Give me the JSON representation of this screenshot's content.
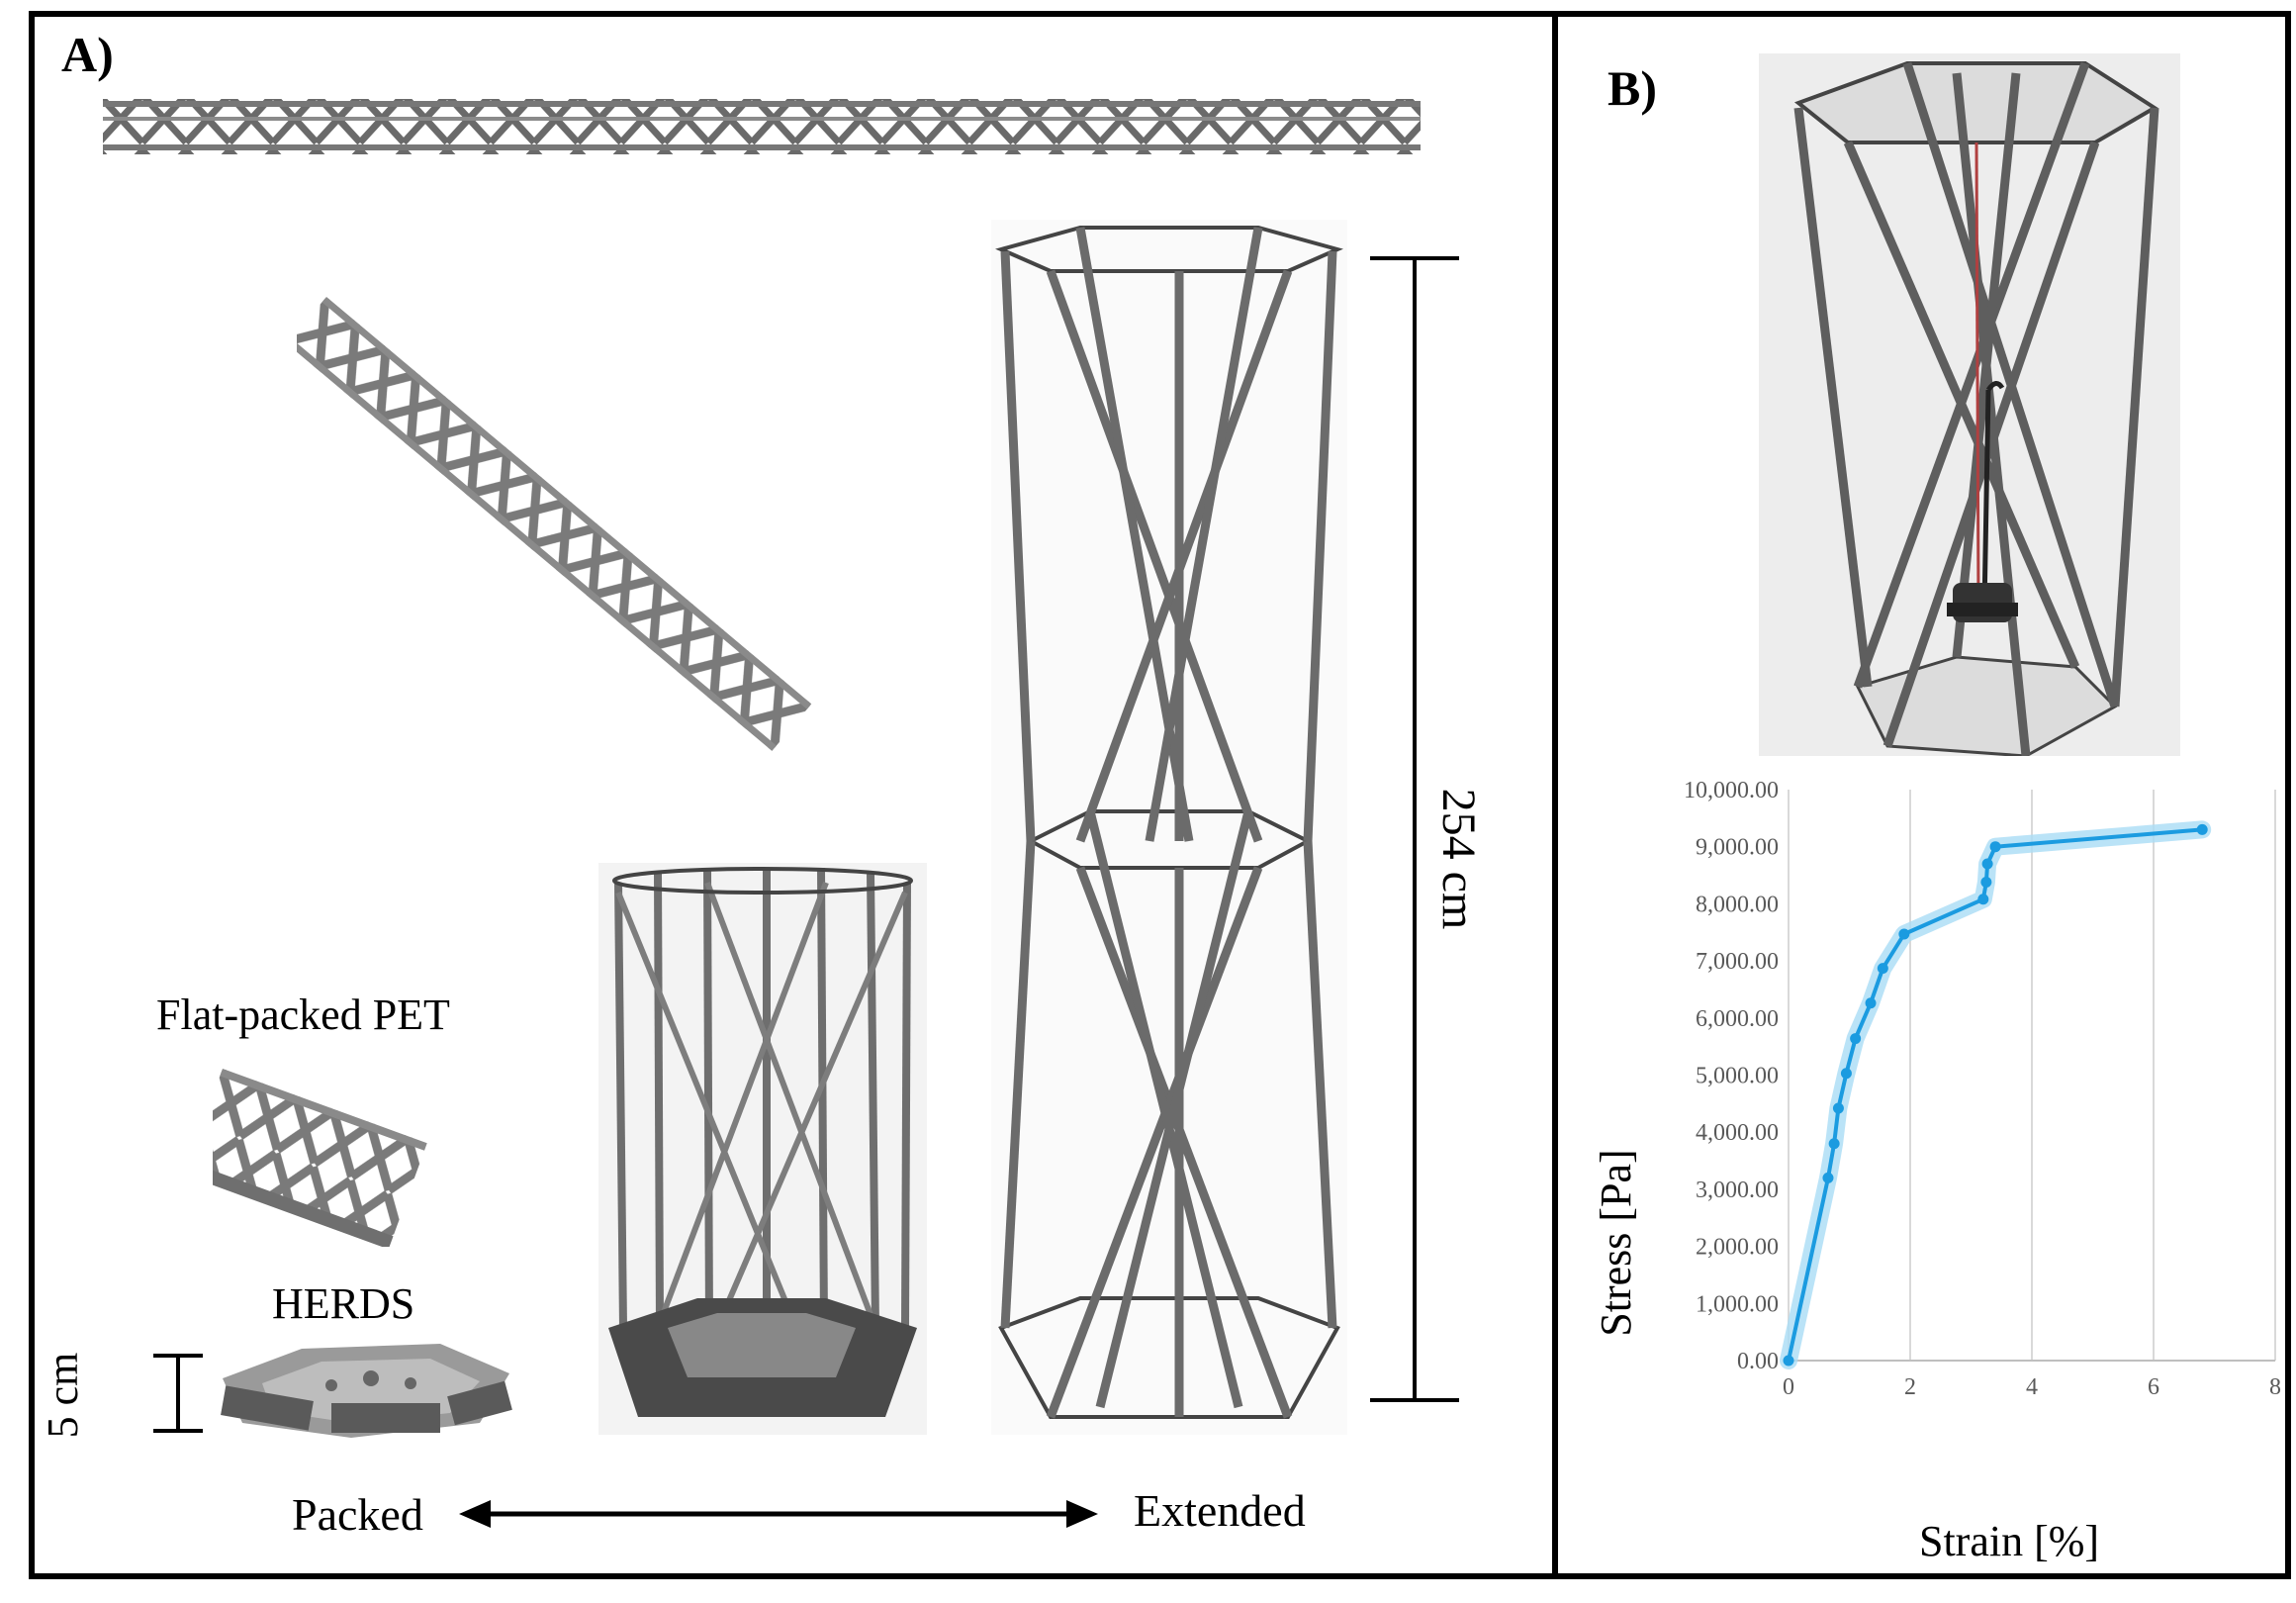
{
  "panel_a": {
    "label": "A)",
    "photo_top_strip": "flat PET strip (extended view)",
    "photo_diagonal_strip": "PET strip partially unfolded",
    "caption_flat_packed": "Flat-packed PET",
    "caption_herds": "HERDS",
    "scale_small": "5 cm",
    "scale_large": "254 cm",
    "arrow_left_label": "Packed",
    "arrow_right_label": "Extended"
  },
  "panel_b": {
    "label": "B)"
  },
  "chart_data": {
    "type": "line",
    "xlabel": "Strain [%]",
    "ylabel": "Stress [Pa]",
    "xlim": [
      0,
      8
    ],
    "ylim": [
      0,
      10000
    ],
    "x_ticks": [
      "0",
      "2",
      "4",
      "6",
      "8"
    ],
    "y_ticks": [
      "0.00",
      "1,000.00",
      "2,000.00",
      "3,000.00",
      "4,000.00",
      "5,000.00",
      "6,000.00",
      "7,000.00",
      "8,000.00",
      "9,000.00",
      "10,000.00"
    ],
    "grid": "vertical",
    "colors": {
      "line": "#1b9be0",
      "band": "#a9dcf5"
    },
    "series": [
      {
        "points": [
          [
            0,
            0
          ],
          [
            0.65,
            3200
          ],
          [
            0.75,
            3800
          ],
          [
            0.82,
            4420
          ],
          [
            0.95,
            5030
          ],
          [
            1.1,
            5640
          ],
          [
            1.35,
            6260
          ],
          [
            1.55,
            6870
          ],
          [
            1.9,
            7470
          ],
          [
            3.2,
            8080
          ],
          [
            3.25,
            8380
          ],
          [
            3.27,
            8700
          ],
          [
            3.4,
            9000
          ],
          [
            6.8,
            9300
          ]
        ]
      }
    ]
  }
}
